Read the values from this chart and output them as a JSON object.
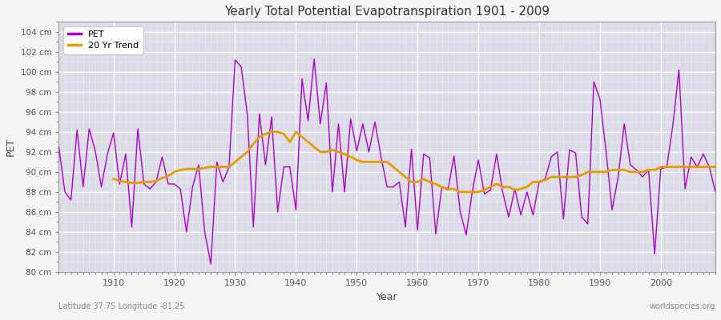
{
  "title": "Yearly Total Potential Evapotranspiration 1901 - 2009",
  "xlabel": "Year",
  "ylabel": "PET",
  "bottom_left_label": "Latitude 37.75 Longitude -81.25",
  "bottom_right_label": "worldspecies.org",
  "pet_color": "#aa00cc",
  "trend_color": "#e89b00",
  "plot_bg_color": "#dcdce8",
  "fig_bg_color": "#f5f5f5",
  "ylim": [
    80,
    105
  ],
  "xlim": [
    1901,
    2009
  ],
  "ytick_labels": [
    "80 cm",
    "82 cm",
    "84 cm",
    "86 cm",
    "88 cm",
    "90 cm",
    "92 cm",
    "94 cm",
    "96 cm",
    "98 cm",
    "100 cm",
    "102 cm",
    "104 cm"
  ],
  "ytick_values": [
    80,
    82,
    84,
    86,
    88,
    90,
    92,
    94,
    96,
    98,
    100,
    102,
    104
  ],
  "xtick_values": [
    1910,
    1920,
    1930,
    1940,
    1950,
    1960,
    1970,
    1980,
    1990,
    2000
  ],
  "years": [
    1901,
    1902,
    1903,
    1904,
    1905,
    1906,
    1907,
    1908,
    1909,
    1910,
    1911,
    1912,
    1913,
    1914,
    1915,
    1916,
    1917,
    1918,
    1919,
    1920,
    1921,
    1922,
    1923,
    1924,
    1925,
    1926,
    1927,
    1928,
    1929,
    1930,
    1931,
    1932,
    1933,
    1934,
    1935,
    1936,
    1937,
    1938,
    1939,
    1940,
    1941,
    1942,
    1943,
    1944,
    1945,
    1946,
    1947,
    1948,
    1949,
    1950,
    1951,
    1952,
    1953,
    1954,
    1955,
    1956,
    1957,
    1958,
    1959,
    1960,
    1961,
    1962,
    1963,
    1964,
    1965,
    1966,
    1967,
    1968,
    1969,
    1970,
    1971,
    1972,
    1973,
    1974,
    1975,
    1976,
    1977,
    1978,
    1979,
    1980,
    1981,
    1982,
    1983,
    1984,
    1985,
    1986,
    1987,
    1988,
    1989,
    1990,
    1991,
    1992,
    1993,
    1994,
    1995,
    1996,
    1997,
    1998,
    1999,
    2000,
    2001,
    2002,
    2003,
    2004,
    2005,
    2006,
    2007,
    2008,
    2009
  ],
  "pet_values": [
    92.5,
    88.0,
    87.2,
    94.2,
    88.5,
    94.3,
    92.1,
    88.5,
    91.8,
    93.9,
    88.8,
    91.8,
    84.5,
    94.3,
    88.8,
    88.3,
    89.0,
    91.5,
    88.8,
    88.8,
    88.3,
    84.0,
    88.5,
    90.7,
    84.0,
    80.8,
    91.0,
    89.0,
    90.5,
    101.2,
    100.5,
    95.8,
    84.5,
    95.8,
    90.7,
    95.5,
    86.0,
    90.5,
    90.5,
    86.2,
    99.3,
    95.1,
    101.3,
    94.8,
    98.9,
    88.0,
    94.8,
    88.0,
    95.3,
    92.1,
    94.8,
    92.0,
    95.0,
    91.5,
    88.5,
    88.5,
    89.0,
    84.5,
    92.3,
    84.2,
    91.8,
    91.4,
    83.8,
    88.5,
    88.2,
    91.6,
    86.1,
    83.7,
    88.0,
    91.2,
    87.8,
    88.2,
    91.8,
    88.0,
    85.5,
    88.3,
    85.7,
    88.0,
    85.7,
    89.0,
    89.3,
    91.5,
    92.0,
    85.3,
    92.2,
    91.9,
    85.5,
    84.8,
    99.0,
    97.3,
    92.1,
    86.2,
    89.5,
    94.8,
    90.7,
    90.2,
    89.5,
    90.2,
    81.8,
    90.3,
    90.5,
    94.7,
    100.2,
    88.3,
    91.5,
    90.5,
    91.8,
    90.5,
    88.0
  ],
  "trend_years": [
    1910,
    1911,
    1912,
    1913,
    1914,
    1915,
    1916,
    1917,
    1918,
    1919,
    1920,
    1921,
    1922,
    1923,
    1924,
    1925,
    1926,
    1927,
    1928,
    1929,
    1930,
    1931,
    1932,
    1933,
    1934,
    1935,
    1936,
    1937,
    1938,
    1939,
    1940,
    1941,
    1942,
    1943,
    1944,
    1945,
    1946,
    1947,
    1948,
    1949,
    1950,
    1951,
    1952,
    1953,
    1954,
    1955,
    1956,
    1957,
    1958,
    1959,
    1960,
    1961,
    1962,
    1963,
    1964,
    1965,
    1966,
    1967,
    1968,
    1969,
    1970,
    1971,
    1972,
    1973,
    1974,
    1975,
    1976,
    1977,
    1978,
    1979,
    1980,
    1981,
    1982,
    1983,
    1984,
    1985,
    1986,
    1987,
    1988,
    1989,
    1990,
    1991,
    1992,
    1993,
    1994,
    1995,
    1996,
    1997,
    1998,
    1999,
    2000,
    2001,
    2002,
    2003,
    2004,
    2005,
    2006,
    2007,
    2008,
    2009
  ],
  "trend_values": [
    89.3,
    89.1,
    89.0,
    88.9,
    88.9,
    89.0,
    89.0,
    89.1,
    89.4,
    89.6,
    90.0,
    90.2,
    90.3,
    90.3,
    90.3,
    90.4,
    90.5,
    90.5,
    90.5,
    90.5,
    91.0,
    91.5,
    92.0,
    92.8,
    93.5,
    93.8,
    94.0,
    94.0,
    93.8,
    93.0,
    94.0,
    93.5,
    93.0,
    92.5,
    92.0,
    92.0,
    92.2,
    92.0,
    91.8,
    91.5,
    91.2,
    91.0,
    91.0,
    91.0,
    91.0,
    91.0,
    90.5,
    90.0,
    89.5,
    89.0,
    89.0,
    89.3,
    89.0,
    88.8,
    88.5,
    88.3,
    88.3,
    88.0,
    88.0,
    88.0,
    88.0,
    88.2,
    88.5,
    88.8,
    88.5,
    88.5,
    88.2,
    88.3,
    88.5,
    89.0,
    89.0,
    89.2,
    89.5,
    89.5,
    89.5,
    89.5,
    89.5,
    89.7,
    90.0,
    90.0,
    90.0,
    90.0,
    90.2,
    90.2,
    90.2,
    90.0,
    90.0,
    90.0,
    90.2,
    90.2,
    90.5,
    90.5,
    90.5,
    90.5,
    90.5,
    90.5,
    90.5,
    90.5,
    90.5,
    90.5
  ]
}
